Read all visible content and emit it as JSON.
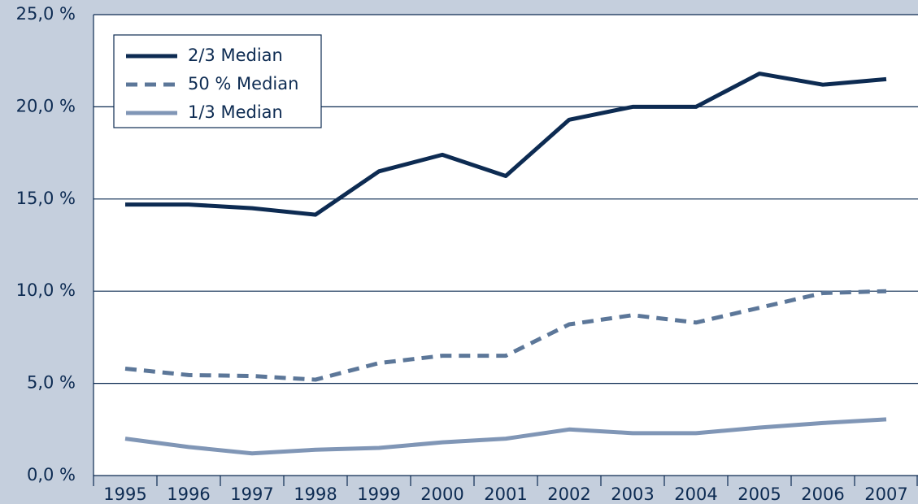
{
  "chart_data": {
    "type": "line",
    "categories": [
      "1995",
      "1996",
      "1997",
      "1998",
      "1999",
      "2000",
      "2001",
      "2002",
      "2003",
      "2004",
      "2005",
      "2006",
      "2007"
    ],
    "series": [
      {
        "name": "2/3 Median",
        "color": "#0d2b52",
        "dashed": false,
        "values": [
          14.7,
          14.7,
          14.5,
          14.15,
          16.5,
          17.4,
          16.25,
          19.3,
          20.0,
          20.0,
          21.8,
          21.2,
          21.5
        ]
      },
      {
        "name": "50 % Median",
        "color": "#5c7799",
        "dashed": true,
        "values": [
          5.8,
          5.45,
          5.4,
          5.2,
          6.1,
          6.5,
          6.5,
          8.2,
          8.7,
          8.3,
          9.1,
          9.9,
          10.0
        ]
      },
      {
        "name": "1/3 Median",
        "color": "#8096b6",
        "dashed": false,
        "values": [
          2.0,
          1.55,
          1.2,
          1.4,
          1.5,
          1.8,
          2.0,
          2.5,
          2.3,
          2.3,
          2.6,
          2.85,
          3.05
        ]
      }
    ],
    "ylim": [
      0,
      25
    ],
    "yticks": [
      {
        "value": 0,
        "label": "0,0 %"
      },
      {
        "value": 5,
        "label": "5,0 %"
      },
      {
        "value": 10,
        "label": "10,0 %"
      },
      {
        "value": 15,
        "label": "15,0 %"
      },
      {
        "value": 20,
        "label": "20,0 %"
      },
      {
        "value": 25,
        "label": "25,0 %"
      }
    ],
    "grid": true,
    "legend": "upper left"
  }
}
